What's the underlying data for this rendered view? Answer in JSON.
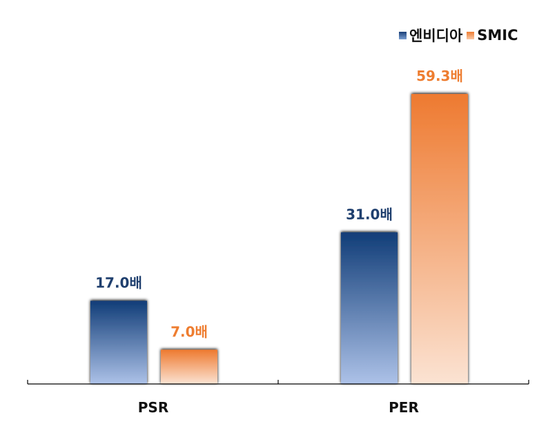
{
  "chart_data": {
    "type": "bar",
    "categories": [
      "PSR",
      "PER"
    ],
    "series": [
      {
        "name": "엔비디아",
        "values": [
          17.0,
          31.0
        ],
        "labels": [
          "17.0배",
          "31.0배"
        ],
        "color_top": "#113d78",
        "color_bottom": "#adc2e8",
        "label_color": "#1f3f6e"
      },
      {
        "name": "SMIC",
        "values": [
          7.0,
          59.3
        ],
        "labels": [
          "7.0배",
          "59.3배"
        ],
        "color_top": "#ee7a30",
        "color_bottom": "#fbe3d3",
        "label_color": "#ee7d30"
      }
    ],
    "ylim": [
      0,
      62
    ],
    "grid": false,
    "legend_position": "top-right"
  }
}
